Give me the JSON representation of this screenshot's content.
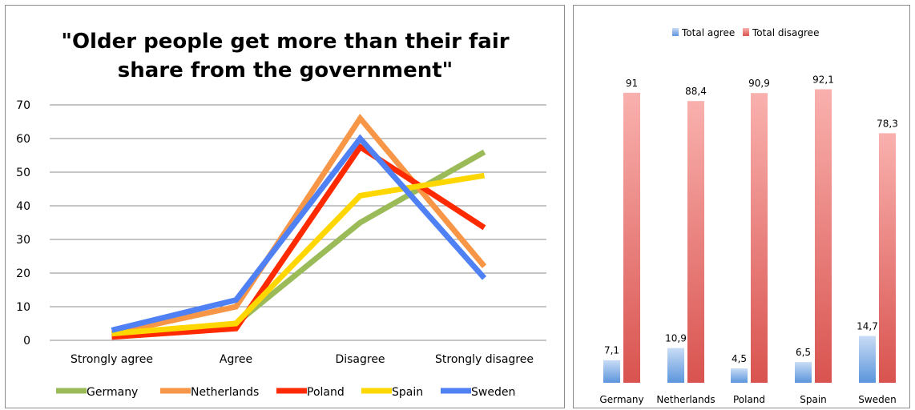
{
  "chart_data": [
    {
      "type": "line",
      "title": "\"Older people get more than their fair share from the government\"",
      "categories": [
        "Strongly agree",
        "Agree",
        "Disagree",
        "Strongly disagree"
      ],
      "yticks": [
        "0",
        "10",
        "20",
        "30",
        "40",
        "50",
        "60",
        "70"
      ],
      "ylim": [
        0,
        70
      ],
      "grid": true,
      "legend_position": "bottom",
      "series": [
        {
          "name": "Germany",
          "color": "#9bbb59",
          "values": [
            1.5,
            5,
            35,
            56
          ]
        },
        {
          "name": "Netherlands",
          "color": "#f79646",
          "values": [
            2,
            10,
            66,
            22
          ]
        },
        {
          "name": "Poland",
          "color": "#ff2a00",
          "values": [
            1,
            3.5,
            57.5,
            33.5
          ]
        },
        {
          "name": "Spain",
          "color": "#ffd700",
          "values": [
            2,
            5,
            43,
            49
          ]
        },
        {
          "name": "Sweden",
          "color": "#4f81f5",
          "values": [
            3,
            12,
            60,
            18.5
          ]
        }
      ]
    },
    {
      "type": "bar",
      "categories": [
        "Germany",
        "Netherlands",
        "Poland",
        "Spain",
        "Sweden"
      ],
      "legend_position": "top",
      "grid": false,
      "series": [
        {
          "name": "Total agree",
          "color": "#6fa8e8",
          "values": [
            7.1,
            10.9,
            4.5,
            6.5,
            14.7
          ],
          "labels": [
            "7,1",
            "10,9",
            "4,5",
            "6,5",
            "14,7"
          ]
        },
        {
          "name": "Total disagree",
          "color": "#e66464",
          "values": [
            91,
            88.4,
            90.9,
            92.1,
            78.3
          ],
          "labels": [
            "91",
            "88,4",
            "90,9",
            "92,1",
            "78,3"
          ]
        }
      ]
    }
  ]
}
